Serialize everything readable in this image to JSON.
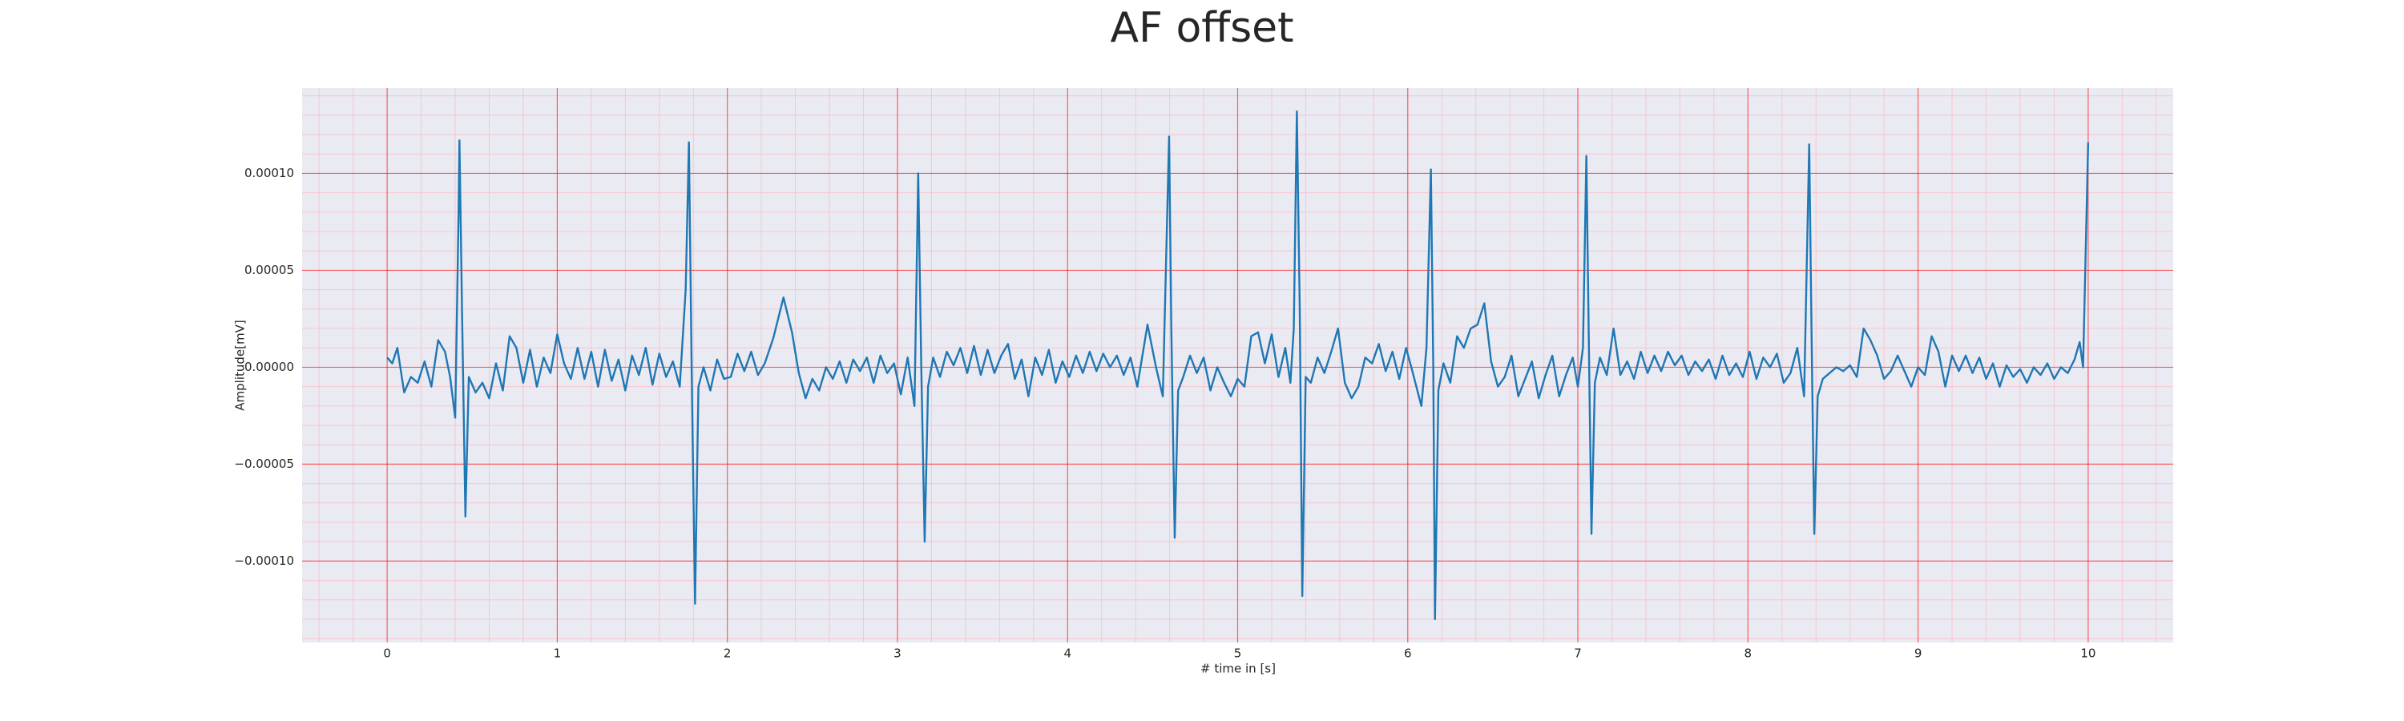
{
  "chart_data": {
    "type": "line",
    "title": "AF offset",
    "xlabel": "# time in [s]",
    "ylabel": "Amplitude[mV]",
    "color": "#1f77b4",
    "background": "#eaeaf2",
    "grid": true,
    "grid_color": "#ff0000",
    "minor_grid_color": "#ffb6c1",
    "xlim": [
      -0.5,
      10.5
    ],
    "ylim": [
      -0.000142,
      0.000144
    ],
    "xticks": [
      0,
      1,
      2,
      3,
      4,
      5,
      6,
      7,
      8,
      9,
      10
    ],
    "yticks": [
      {
        "value": -0.0001,
        "label": "−0.00010"
      },
      {
        "value": -5e-05,
        "label": "−0.00005"
      },
      {
        "value": 0,
        "label": "0.00000"
      },
      {
        "value": 5e-05,
        "label": "0.00005"
      },
      {
        "value": 0.0001,
        "label": "0.00010"
      }
    ],
    "xminorticks": [
      -0.4,
      -0.2,
      0.2,
      0.4,
      0.6,
      0.8,
      1.2,
      1.4,
      1.6,
      1.8,
      2.2,
      2.4,
      2.6,
      2.8,
      3.2,
      3.4,
      3.6,
      3.8,
      4.2,
      4.4,
      4.6,
      4.8,
      5.2,
      5.4,
      5.6,
      5.8,
      6.2,
      6.4,
      6.6,
      6.8,
      7.2,
      7.4,
      7.6,
      7.8,
      8.2,
      8.4,
      8.6,
      8.8,
      9.2,
      9.4,
      9.6,
      9.8,
      10.2,
      10.4
    ],
    "yminorticks": [
      -0.00014,
      -0.00013,
      -0.00012,
      -0.00011,
      -9e-05,
      -8e-05,
      -7e-05,
      -6e-05,
      -4e-05,
      -3e-05,
      -2e-05,
      -1e-05,
      1e-05,
      2e-05,
      3e-05,
      4e-05,
      6e-05,
      7e-05,
      8e-05,
      9e-05,
      0.00011,
      0.00012,
      0.00013,
      0.00014
    ],
    "x": [
      0,
      0.03,
      0.06,
      0.1,
      0.14,
      0.18,
      0.22,
      0.26,
      0.3,
      0.34,
      0.37,
      0.4,
      0.42,
      0.425,
      0.44,
      0.46,
      0.48,
      0.52,
      0.56,
      0.6,
      0.64,
      0.68,
      0.72,
      0.76,
      0.8,
      0.84,
      0.88,
      0.92,
      0.96,
      1.0,
      1.04,
      1.08,
      1.12,
      1.16,
      1.2,
      1.24,
      1.28,
      1.32,
      1.36,
      1.4,
      1.44,
      1.48,
      1.52,
      1.56,
      1.6,
      1.64,
      1.68,
      1.72,
      1.755,
      1.774,
      1.79,
      1.81,
      1.83,
      1.86,
      1.9,
      1.94,
      1.98,
      2.02,
      2.06,
      2.1,
      2.14,
      2.18,
      2.22,
      2.27,
      2.33,
      2.38,
      2.42,
      2.46,
      2.5,
      2.54,
      2.58,
      2.62,
      2.66,
      2.7,
      2.74,
      2.78,
      2.82,
      2.86,
      2.9,
      2.94,
      2.98,
      3.02,
      3.06,
      3.1,
      3.122,
      3.14,
      3.16,
      3.18,
      3.21,
      3.25,
      3.29,
      3.33,
      3.37,
      3.41,
      3.45,
      3.49,
      3.53,
      3.57,
      3.61,
      3.65,
      3.69,
      3.73,
      3.77,
      3.81,
      3.85,
      3.89,
      3.93,
      3.97,
      4.01,
      4.05,
      4.09,
      4.13,
      4.17,
      4.21,
      4.25,
      4.29,
      4.33,
      4.37,
      4.41,
      4.47,
      4.52,
      4.56,
      4.597,
      4.61,
      4.63,
      4.65,
      4.68,
      4.72,
      4.76,
      4.8,
      4.84,
      4.88,
      4.92,
      4.96,
      5.0,
      5.04,
      5.08,
      5.12,
      5.16,
      5.2,
      5.24,
      5.28,
      5.31,
      5.33,
      5.348,
      5.365,
      5.38,
      5.4,
      5.43,
      5.47,
      5.51,
      5.55,
      5.59,
      5.63,
      5.67,
      5.71,
      5.75,
      5.79,
      5.83,
      5.87,
      5.91,
      5.95,
      5.99,
      6.03,
      6.08,
      6.11,
      6.136,
      6.15,
      6.16,
      6.18,
      6.21,
      6.25,
      6.29,
      6.33,
      6.37,
      6.41,
      6.45,
      6.49,
      6.53,
      6.57,
      6.61,
      6.65,
      6.69,
      6.73,
      6.77,
      6.81,
      6.85,
      6.89,
      6.93,
      6.97,
      7.0,
      7.03,
      7.05,
      7.065,
      7.08,
      7.1,
      7.13,
      7.17,
      7.21,
      7.25,
      7.29,
      7.33,
      7.37,
      7.41,
      7.45,
      7.49,
      7.53,
      7.57,
      7.61,
      7.65,
      7.69,
      7.73,
      7.77,
      7.81,
      7.85,
      7.89,
      7.93,
      7.97,
      8.01,
      8.05,
      8.09,
      8.13,
      8.17,
      8.21,
      8.25,
      8.29,
      8.33,
      8.36,
      8.375,
      8.39,
      8.41,
      8.44,
      8.48,
      8.52,
      8.56,
      8.6,
      8.64,
      8.68,
      8.72,
      8.76,
      8.8,
      8.84,
      8.88,
      8.92,
      8.96,
      9.0,
      9.04,
      9.08,
      9.12,
      9.16,
      9.2,
      9.24,
      9.28,
      9.32,
      9.36,
      9.4,
      9.44,
      9.48,
      9.52,
      9.56,
      9.6,
      9.64,
      9.68,
      9.72,
      9.76,
      9.8,
      9.84,
      9.88,
      9.92,
      9.95,
      9.97,
      10.0
    ],
    "values": [
      5e-06,
      2e-06,
      1e-05,
      -1.3e-05,
      -5e-06,
      -8e-06,
      3e-06,
      -1e-05,
      1.4e-05,
      8e-06,
      -5e-06,
      -2.6e-05,
      8e-05,
      0.000117,
      3e-05,
      -7.7e-05,
      -5e-06,
      -1.3e-05,
      -8e-06,
      -1.6e-05,
      2e-06,
      -1.2e-05,
      1.6e-05,
      1e-05,
      -8e-06,
      9e-06,
      -1e-05,
      5e-06,
      -3e-06,
      1.7e-05,
      2e-06,
      -6e-06,
      1e-05,
      -6e-06,
      8e-06,
      -1e-05,
      9e-06,
      -7e-06,
      4e-06,
      -1.2e-05,
      6e-06,
      -4e-06,
      1e-05,
      -9e-06,
      7e-06,
      -5e-06,
      3e-06,
      -1e-05,
      4e-05,
      0.000116,
      0,
      -0.000122,
      -1e-05,
      0,
      -1.2e-05,
      4e-06,
      -6e-06,
      -5e-06,
      7e-06,
      -2e-06,
      8e-06,
      -4e-06,
      2e-06,
      1.5e-05,
      3.6e-05,
      1.8e-05,
      -3e-06,
      -1.6e-05,
      -6e-06,
      -1.2e-05,
      0,
      -6e-06,
      3e-06,
      -8e-06,
      4e-06,
      -2e-06,
      5e-06,
      -8e-06,
      6e-06,
      -3e-06,
      2e-06,
      -1.4e-05,
      5e-06,
      -2e-05,
      0.0001,
      0,
      -9e-05,
      -1e-05,
      5e-06,
      -5e-06,
      8e-06,
      1e-06,
      1e-05,
      -3e-06,
      1.1e-05,
      -4e-06,
      9e-06,
      -3e-06,
      6e-06,
      1.2e-05,
      -6e-06,
      4e-06,
      -1.5e-05,
      5e-06,
      -4e-06,
      9e-06,
      -8e-06,
      3e-06,
      -5e-06,
      6e-06,
      -3e-06,
      8e-06,
      -2e-06,
      7e-06,
      0,
      6e-06,
      -4e-06,
      5e-06,
      -1e-05,
      2.2e-05,
      0,
      -1.5e-05,
      0.000119,
      2e-05,
      -8.8e-05,
      -1.2e-05,
      -5e-06,
      6e-06,
      -3e-06,
      5e-06,
      -1.2e-05,
      0,
      -8e-06,
      -1.5e-05,
      -6e-06,
      -1e-05,
      1.6e-05,
      1.8e-05,
      2e-06,
      1.7e-05,
      -5e-06,
      1e-05,
      -8e-06,
      2e-05,
      0.000132,
      3e-05,
      -0.000118,
      -5e-06,
      -8e-06,
      5e-06,
      -3e-06,
      8e-06,
      2e-05,
      -8e-06,
      -1.6e-05,
      -1e-05,
      5e-06,
      2e-06,
      1.2e-05,
      -2e-06,
      8e-06,
      -6e-06,
      1e-05,
      -3e-06,
      -2e-05,
      1e-05,
      0.000102,
      0,
      -0.00013,
      -1.2e-05,
      2e-06,
      -8e-06,
      1.6e-05,
      1e-05,
      2e-05,
      2.2e-05,
      3.3e-05,
      3e-06,
      -1e-05,
      -5e-06,
      6e-06,
      -1.5e-05,
      -6e-06,
      3e-06,
      -1.6e-05,
      -4e-06,
      6e-06,
      -1.5e-05,
      -4e-06,
      5e-06,
      -1e-05,
      1e-05,
      0.000109,
      1e-05,
      -8.6e-05,
      -8e-06,
      5e-06,
      -4e-06,
      2e-05,
      -4e-06,
      3e-06,
      -6e-06,
      8e-06,
      -3e-06,
      6e-06,
      -2e-06,
      8e-06,
      1e-06,
      6e-06,
      -4e-06,
      3e-06,
      -2e-06,
      4e-06,
      -6e-06,
      6e-06,
      -4e-06,
      2e-06,
      -5e-06,
      8e-06,
      -6e-06,
      5e-06,
      0,
      7e-06,
      -8e-06,
      -3e-06,
      1e-05,
      -1.5e-05,
      0.000115,
      1e-05,
      -8.6e-05,
      -1.5e-05,
      -6e-06,
      -3e-06,
      0,
      -2e-06,
      1e-06,
      -5e-06,
      2e-05,
      1.4e-05,
      6e-06,
      -6e-06,
      -2e-06,
      6e-06,
      -2e-06,
      -1e-05,
      0,
      -4e-06,
      1.6e-05,
      8e-06,
      -1e-05,
      6e-06,
      -2e-06,
      6e-06,
      -3e-06,
      5e-06,
      -6e-06,
      2e-06,
      -1e-05,
      1e-06,
      -5e-06,
      -1e-06,
      -8e-06,
      0,
      -4e-06,
      2e-06,
      -6e-06,
      0,
      -3e-06,
      4e-06,
      1.3e-05,
      0,
      0.000116
    ]
  }
}
